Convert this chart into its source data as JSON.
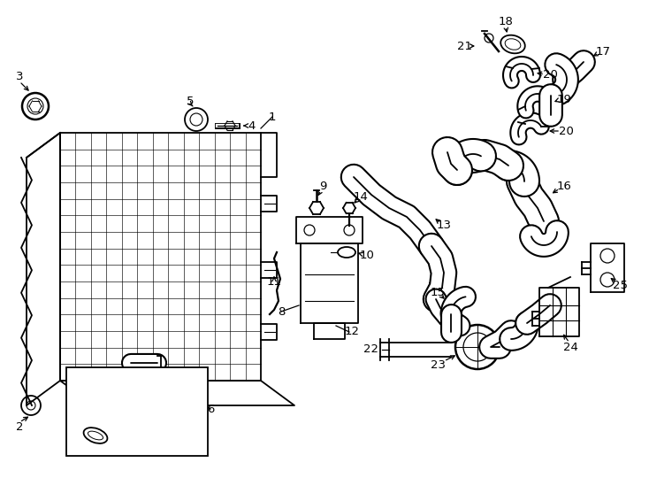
{
  "bg": "#ffffff",
  "lc": "#000000",
  "fig_w": 7.34,
  "fig_h": 5.4,
  "dpi": 100
}
